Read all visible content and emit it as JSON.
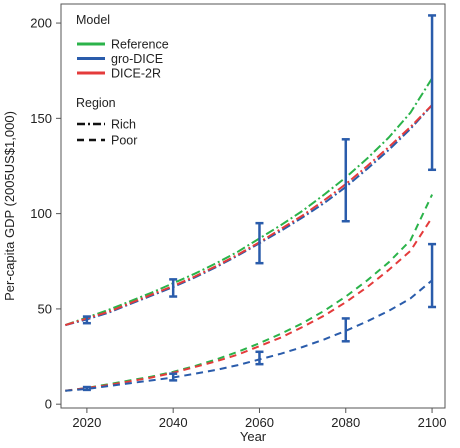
{
  "chart_data": {
    "type": "line",
    "xlabel": "Year",
    "ylabel": "Per-capita GDP (2005US$1,000)",
    "xlim": [
      2014,
      2103
    ],
    "ylim": [
      -2,
      210
    ],
    "x_ticks": [
      2020,
      2040,
      2060,
      2080,
      2100
    ],
    "y_ticks": [
      0,
      50,
      100,
      150,
      200
    ],
    "grid": false,
    "legend": {
      "placement": "top-left",
      "model_title": "Model",
      "region_title": "Region",
      "models": [
        {
          "label": "Reference",
          "color": "#2bb34a"
        },
        {
          "label": "gro-DICE",
          "color": "#2a5cab"
        },
        {
          "label": "DICE-2R",
          "color": "#e43b3b"
        }
      ],
      "regions": [
        {
          "label": "Rich",
          "dash": "dash-dot"
        },
        {
          "label": "Poor",
          "dash": "dashed"
        }
      ]
    },
    "x": [
      2015,
      2020,
      2025,
      2030,
      2035,
      2040,
      2045,
      2050,
      2055,
      2060,
      2065,
      2070,
      2075,
      2080,
      2085,
      2090,
      2095,
      2100
    ],
    "series": [
      {
        "model": "Reference",
        "region": "Rich",
        "color": "#2bb34a",
        "style": "dash-dot",
        "values": [
          41.5,
          45.5,
          49.5,
          54,
          58.5,
          63.5,
          68.5,
          74,
          80,
          87,
          94,
          101.5,
          110,
          119,
          129,
          140,
          153,
          171
        ]
      },
      {
        "model": "gro-DICE",
        "region": "Rich",
        "color": "#2a5cab",
        "style": "dash-dot",
        "values": [
          41.5,
          44.5,
          48,
          52.5,
          57,
          61.5,
          66.5,
          72,
          78,
          84.5,
          91,
          98,
          105.5,
          114,
          123.5,
          133.5,
          144.5,
          157
        ]
      },
      {
        "model": "DICE-2R",
        "region": "Rich",
        "color": "#e43b3b",
        "style": "dash-dot",
        "values": [
          41.5,
          45,
          48.5,
          53,
          57.5,
          62,
          67,
          72.5,
          78.5,
          85,
          92,
          99,
          107,
          115.5,
          125,
          135,
          145.5,
          157
        ]
      },
      {
        "model": "Reference",
        "region": "Poor",
        "color": "#2bb34a",
        "style": "dashed",
        "values": [
          7,
          8.5,
          10.5,
          12.5,
          14.5,
          17,
          20,
          23.5,
          27.5,
          32,
          37,
          42.5,
          49,
          56.5,
          65,
          74.5,
          86,
          110
        ]
      },
      {
        "model": "DICE-2R",
        "region": "Poor",
        "color": "#e43b3b",
        "style": "dashed",
        "values": [
          7,
          8.5,
          10,
          12,
          14,
          16.5,
          19.5,
          22.5,
          26,
          30.5,
          35,
          40.5,
          46.5,
          53.5,
          61.5,
          70.5,
          80.5,
          98
        ]
      },
      {
        "model": "gro-DICE",
        "region": "Poor",
        "color": "#2a5cab",
        "style": "dashed",
        "values": [
          7,
          8,
          9.5,
          11,
          12.5,
          14,
          16,
          18,
          20.5,
          23.5,
          26.5,
          30,
          34,
          38.5,
          43.5,
          49,
          55.5,
          65
        ]
      }
    ],
    "error_bars": [
      {
        "x": 2020,
        "low": 42.5,
        "high": 46
      },
      {
        "x": 2040,
        "low": 56.5,
        "high": 65.5
      },
      {
        "x": 2060,
        "low": 74,
        "high": 95
      },
      {
        "x": 2080,
        "low": 96,
        "high": 139
      },
      {
        "x": 2100,
        "low": 123,
        "high": 204
      },
      {
        "x": 2020,
        "low": 7.5,
        "high": 9
      },
      {
        "x": 2040,
        "low": 12.5,
        "high": 16
      },
      {
        "x": 2060,
        "low": 21,
        "high": 27.5
      },
      {
        "x": 2080,
        "low": 33,
        "high": 45
      },
      {
        "x": 2100,
        "low": 51,
        "high": 84
      }
    ],
    "error_bar_color": "#2a5cab"
  }
}
